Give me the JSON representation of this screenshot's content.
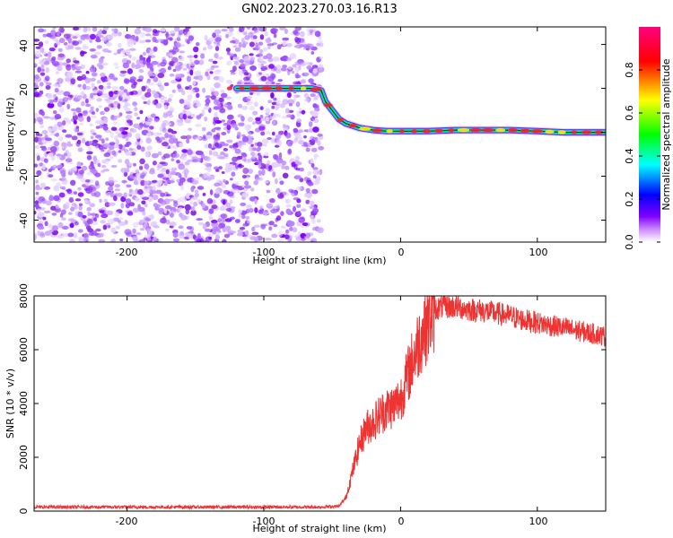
{
  "title": "GN02.2023.270.03.16.R13",
  "chart_data": [
    {
      "type": "heatmap",
      "xlabel": "Height of straight line (km)",
      "ylabel": "Frequency (Hz)",
      "xlim": [
        -268,
        150
      ],
      "ylim": [
        -50,
        48
      ],
      "xticks": [
        "-200",
        "-100",
        "0",
        "100"
      ],
      "yticks": [
        "-40",
        "-20",
        "0",
        "20",
        "40"
      ],
      "colorbar": {
        "label": "Normalized spectral amplitude",
        "range": [
          0,
          1
        ],
        "ticks": [
          "0.0",
          "0.2",
          "0.4",
          "0.6",
          "0.8"
        ],
        "colors": [
          "#ffffff",
          "#cc88ff",
          "#7f00ff",
          "#0000ff",
          "#00ffff",
          "#00ff00",
          "#ffff00",
          "#ff0000",
          "#ff0080"
        ]
      },
      "noise_region_x": [
        -268,
        -58
      ],
      "signal_track": {
        "x": [
          -120,
          -90,
          -75,
          -65,
          -58,
          -55,
          -50,
          -45,
          -40,
          -35,
          -30,
          -20,
          -10,
          0,
          20,
          40,
          60,
          80,
          100,
          120,
          150
        ],
        "y": [
          20,
          20,
          20,
          20,
          19,
          14,
          10,
          6,
          4,
          3,
          2,
          1,
          0.5,
          0.5,
          0.5,
          1,
          1,
          1,
          0.5,
          0,
          0
        ]
      }
    },
    {
      "type": "line",
      "xlabel": "Height of straight line (km)",
      "ylabel": "SNR (10 * v/v)",
      "xlim": [
        -268,
        150
      ],
      "ylim": [
        0,
        8000
      ],
      "xticks": [
        "-200",
        "-100",
        "0",
        "100"
      ],
      "yticks": [
        "0",
        "2000",
        "4000",
        "6000",
        "8000"
      ],
      "color": "#ee3333",
      "series": [
        {
          "x": [
            -268,
            -200,
            -100,
            -60,
            -45,
            -40,
            -35,
            -30,
            -25,
            -20,
            -15,
            -10,
            -5,
            0,
            5,
            10,
            15,
            20,
            25,
            30,
            40,
            50,
            60,
            70,
            80,
            90,
            100,
            110,
            120,
            130,
            140,
            150
          ],
          "values": [
            150,
            150,
            150,
            150,
            180,
            500,
            1500,
            2500,
            3100,
            3300,
            3600,
            3800,
            3900,
            4200,
            5000,
            5800,
            6500,
            7100,
            7500,
            7600,
            7600,
            7500,
            7450,
            7350,
            7250,
            7100,
            7000,
            6900,
            6800,
            6700,
            6600,
            6500
          ]
        }
      ]
    }
  ]
}
